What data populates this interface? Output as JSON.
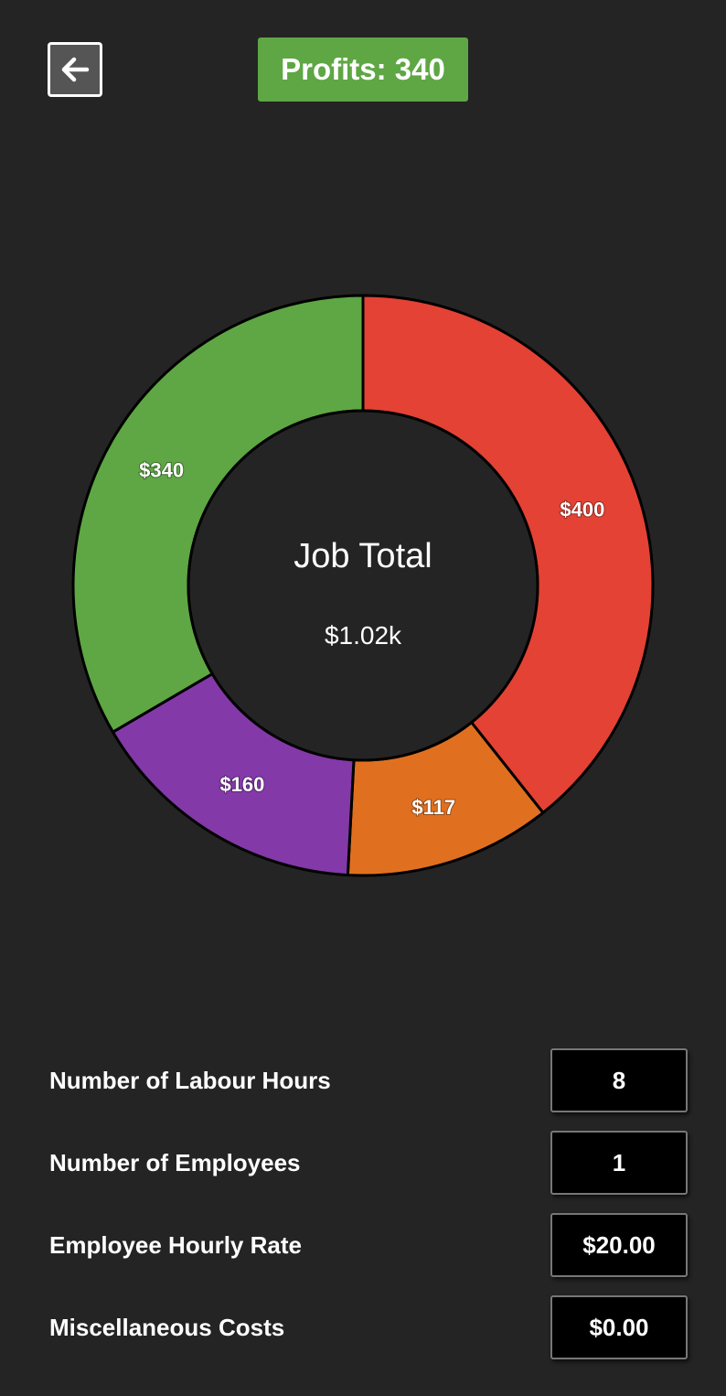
{
  "header": {
    "back_icon": "arrow-left-icon",
    "profits_label": "Profits: 340",
    "profits_color": "#5ea744"
  },
  "chart_data": {
    "type": "pie",
    "style": "donut",
    "center_title": "Job Total",
    "center_value": "$1.02k",
    "slices": [
      {
        "label": "$400",
        "value": 400,
        "color": "#e34234"
      },
      {
        "label": "$117",
        "value": 117,
        "color": "#e07020"
      },
      {
        "label": "$160",
        "value": 160,
        "color": "#8439a8"
      },
      {
        "label": "$340",
        "value": 340,
        "color": "#5ea744"
      }
    ]
  },
  "fields": [
    {
      "label": "Number of Labour Hours",
      "value": "8"
    },
    {
      "label": "Number of Employees",
      "value": "1"
    },
    {
      "label": "Employee Hourly Rate",
      "value": "$20.00"
    },
    {
      "label": "Miscellaneous Costs",
      "value": "$0.00"
    }
  ]
}
